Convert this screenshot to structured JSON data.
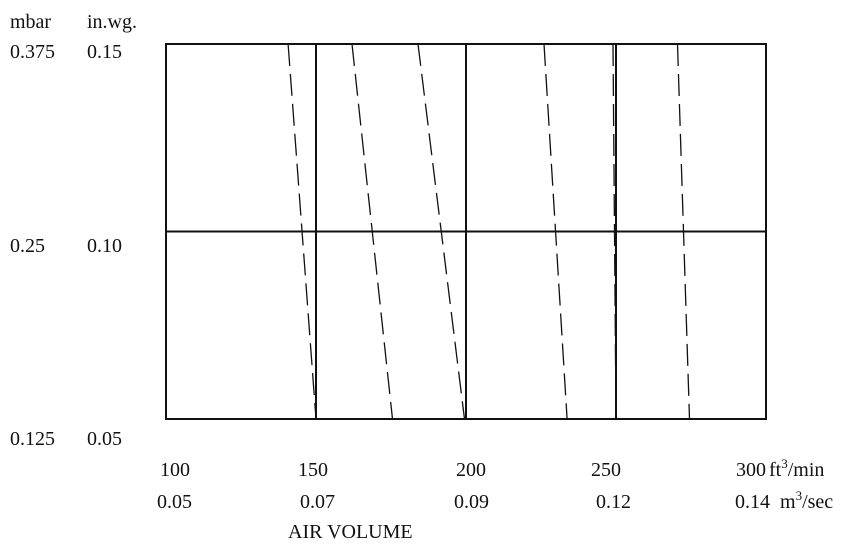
{
  "chart_data": {
    "type": "line",
    "y_units": {
      "primary": "mbar",
      "secondary": "in.wg."
    },
    "y_ticks": [
      {
        "mbar": "0.375",
        "inwg": "0.15",
        "value": 0.15
      },
      {
        "mbar": "0.25",
        "inwg": "0.10",
        "value": 0.1
      },
      {
        "mbar": "0.125",
        "inwg": "0.05",
        "value": 0.05
      }
    ],
    "x_ticks": [
      {
        "cfm": "100",
        "m3s": "0.05",
        "value": 100
      },
      {
        "cfm": "150",
        "m3s": "0.07",
        "value": 150
      },
      {
        "cfm": "200",
        "m3s": "0.09",
        "value": 200
      },
      {
        "cfm": "250",
        "m3s": "0.12",
        "value": 250
      },
      {
        "cfm": "300",
        "m3s": "0.14",
        "value": 300
      }
    ],
    "x_unit_primary": {
      "base": "ft",
      "sup": "3",
      "rest": "/min"
    },
    "x_unit_secondary": {
      "base": "m",
      "sup": "3",
      "rest": "/sec"
    },
    "xlabel": "AIR VOLUME",
    "xlim": [
      100,
      300
    ],
    "ylim": [
      0.05,
      0.15
    ],
    "grid_x": [
      150,
      200,
      250
    ],
    "grid_y": [
      0.1
    ],
    "series": [
      {
        "style": "dashed",
        "x": [
          140.7,
          150.0
        ],
        "y": [
          0.15,
          0.05
        ]
      },
      {
        "style": "dashed",
        "x": [
          162.0,
          175.5
        ],
        "y": [
          0.15,
          0.05
        ]
      },
      {
        "style": "dashed",
        "x": [
          184.0,
          199.5
        ],
        "y": [
          0.15,
          0.05
        ]
      },
      {
        "style": "dashed",
        "x": [
          226.0,
          233.7
        ],
        "y": [
          0.15,
          0.05
        ]
      },
      {
        "style": "dashed",
        "x": [
          249.0,
          250.0
        ],
        "y": [
          0.15,
          0.05
        ]
      },
      {
        "style": "dashed",
        "x": [
          270.5,
          274.5
        ],
        "y": [
          0.15,
          0.05
        ]
      }
    ]
  }
}
